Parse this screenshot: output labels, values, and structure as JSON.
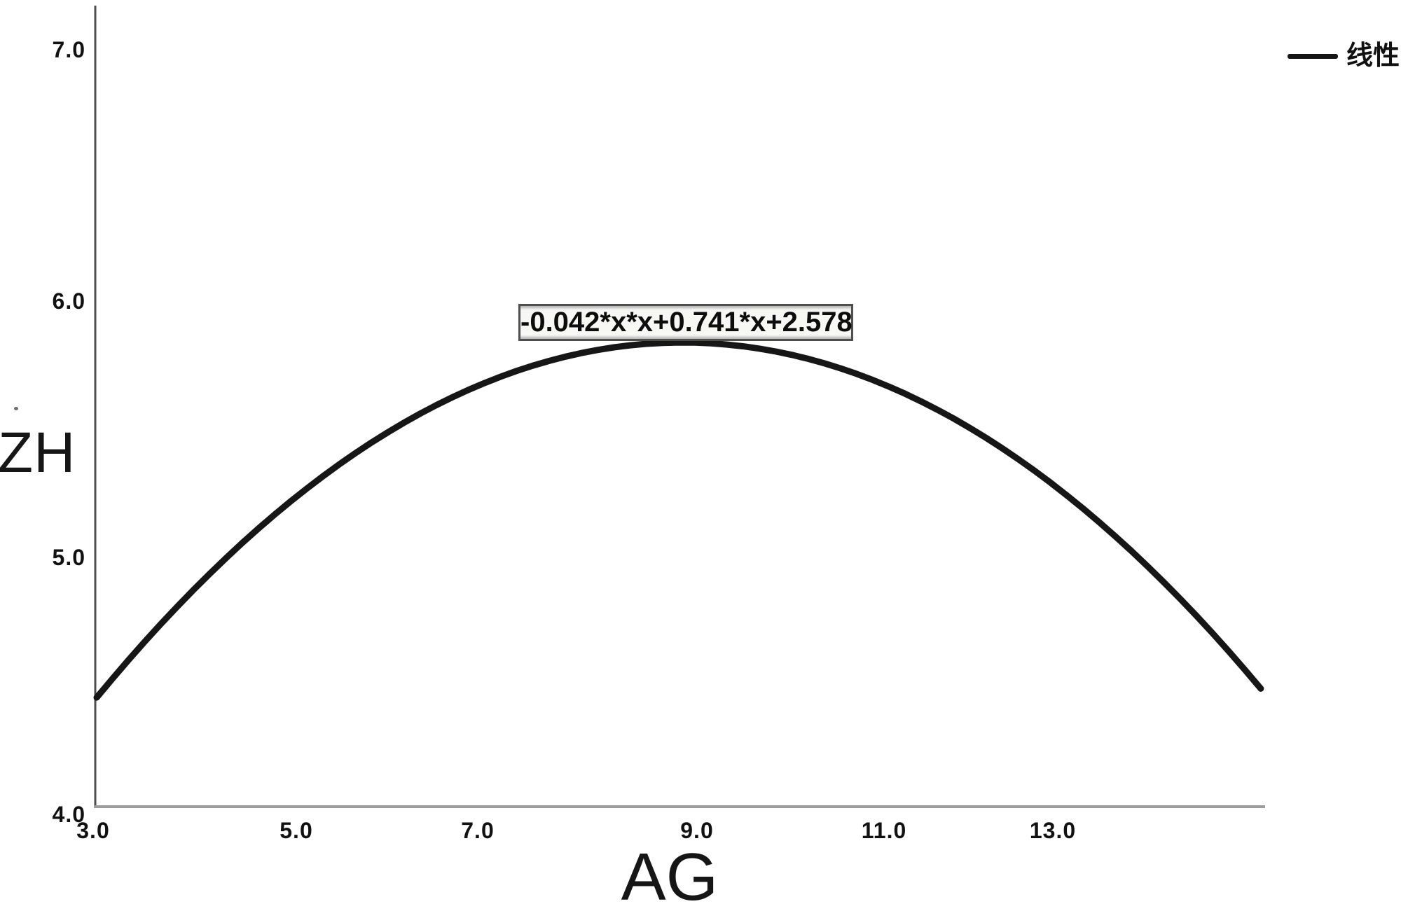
{
  "chart_data": {
    "type": "line",
    "title": "",
    "xlabel": "AG",
    "ylabel": "ZH",
    "x_ticks": [
      "3.0",
      "5.0",
      "7.0",
      "9.0",
      "11.0",
      "13.0"
    ],
    "y_ticks": [
      "7.0",
      "6.0",
      "5.0",
      "4.0"
    ],
    "xlim": [
      3.0,
      15.2
    ],
    "ylim": [
      4.0,
      7.2
    ],
    "grid": false,
    "annotation": {
      "text": "-0.042*x*x+0.741*x+2.578"
    },
    "legend": {
      "position": "top-right",
      "entries": [
        {
          "label": "线性",
          "marker": "line",
          "color": "#141414"
        }
      ]
    },
    "series": [
      {
        "name": "线性",
        "equation": "-0.042*x*x+0.741*x+2.578",
        "coefficients": {
          "a": -0.042,
          "b": 0.741,
          "c": 2.578
        },
        "x_range": [
          3.07,
          14.5
        ],
        "vertex": {
          "x": 8.82,
          "y": 5.85
        },
        "points": [
          {
            "x": 3.0,
            "y": 4.42
          },
          {
            "x": 5.0,
            "y": 5.23
          },
          {
            "x": 7.0,
            "y": 5.71
          },
          {
            "x": 8.82,
            "y": 5.85
          },
          {
            "x": 9.0,
            "y": 5.85
          },
          {
            "x": 11.0,
            "y": 5.65
          },
          {
            "x": 13.0,
            "y": 5.11
          },
          {
            "x": 14.5,
            "y": 4.49
          }
        ]
      }
    ],
    "colors": {
      "curve": "#161616",
      "y_axis": "#4d4d4d",
      "x_axis": "#9c9c9c",
      "text": "#111111",
      "annotation_border": "#4f4f4f",
      "annotation_bg": "#f7f7f4"
    }
  }
}
